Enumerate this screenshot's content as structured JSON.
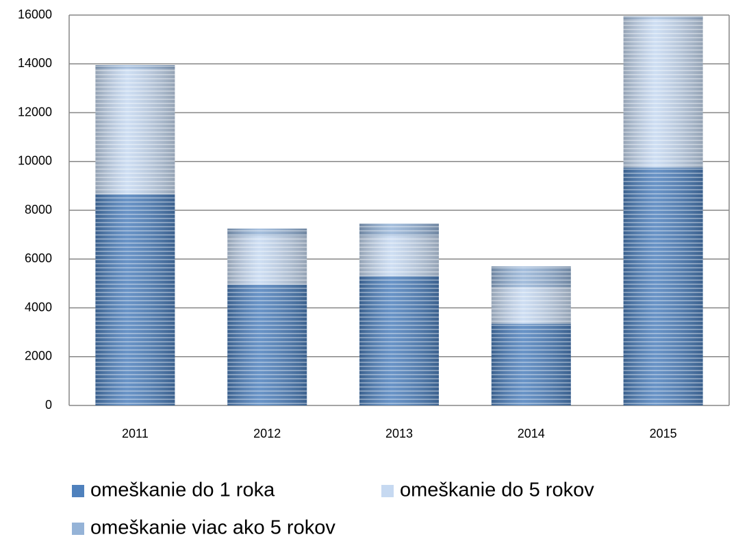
{
  "chart_data": {
    "type": "stacked_bar",
    "categories": [
      "2011",
      "2012",
      "2013",
      "2014",
      "2015"
    ],
    "series": [
      {
        "name": "omeškanie do 1 roka",
        "color": "#4f81bd",
        "values": [
          8650,
          4950,
          5300,
          3350,
          9750
        ]
      },
      {
        "name": "omeškanie do 5 rokov",
        "color": "#c6d9f1",
        "values": [
          5150,
          2000,
          1650,
          1500,
          6100
        ]
      },
      {
        "name": "omeškanie viac ako 5 rokov",
        "color": "#95b3d7",
        "values": [
          150,
          300,
          500,
          850,
          100
        ]
      }
    ],
    "ylim": [
      0,
      16000
    ],
    "yticks": [
      0,
      2000,
      4000,
      6000,
      8000,
      10000,
      12000,
      14000,
      16000
    ],
    "grid": true
  }
}
